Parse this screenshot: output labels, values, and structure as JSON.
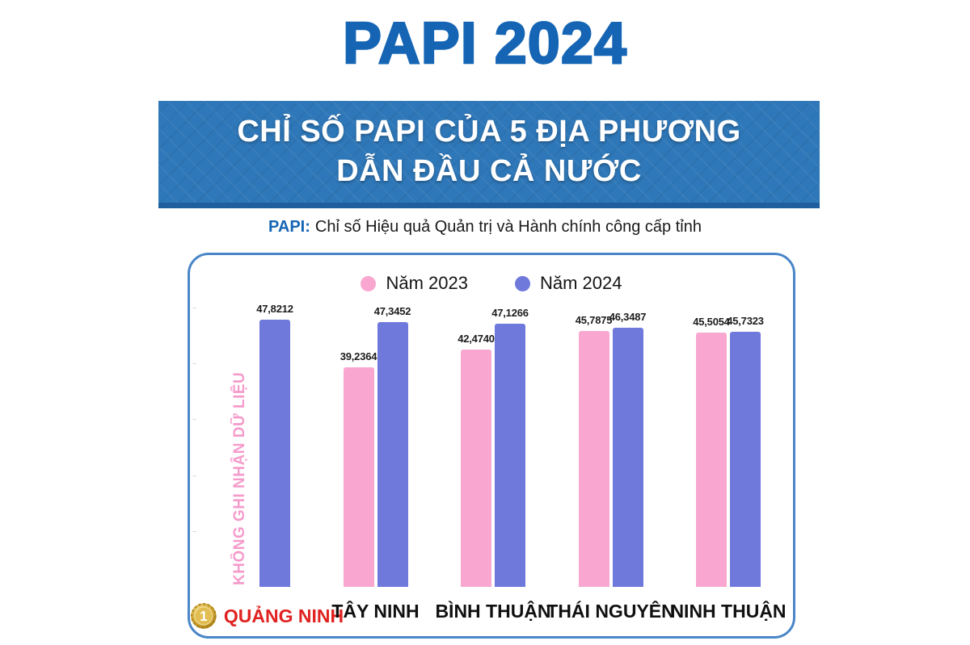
{
  "page_title": "PAPI 2024",
  "banner": {
    "line1": "CHỈ SỐ PAPI CỦA 5 ĐỊA PHƯƠNG",
    "line2": "DẪN ĐẦU CẢ NƯỚC"
  },
  "subtitle": {
    "prefix": "PAPI:",
    "text": "Chỉ số Hiệu quả Quản trị và Hành chính công cấp tỉnh"
  },
  "colors": {
    "title_blue": "#1565B4",
    "banner_blue": "#2E77B8",
    "banner_edge": "#1F5F9E",
    "panel_border": "#4A86C8",
    "pink": "#F9A7D0",
    "purple": "#6E79DB",
    "red": "#E02220",
    "note_pink": "#F59BCB",
    "gold": "#C99B2E"
  },
  "chart_data": {
    "type": "bar",
    "title": "Chỉ số PAPI của 5 địa phương dẫn đầu cả nước",
    "categories": [
      "QUẢNG NINH",
      "TÂY NINH",
      "BÌNH THUẬN",
      "THÁI NGUYÊN",
      "NINH THUẬN"
    ],
    "series": [
      {
        "name": "Năm 2023",
        "color_key": "pink",
        "values": [
          null,
          39.2364,
          42.474,
          45.7875,
          45.5054
        ],
        "value_labels": [
          "",
          "39,2364",
          "42,4740",
          "45,7875",
          "45,5054"
        ]
      },
      {
        "name": "Năm 2024",
        "color_key": "purple",
        "values": [
          47.8212,
          47.3452,
          47.1266,
          46.3487,
          45.7323
        ],
        "value_labels": [
          "47,8212",
          "47,3452",
          "47,1266",
          "46,3487",
          "45,7323"
        ]
      }
    ],
    "missing_data_label": "KHÔNG GHI NHẬN DỮ LIỆU",
    "rank_badge": "1",
    "highlight_category_index": 0,
    "ylim": [
      0,
      50
    ],
    "grid": false,
    "axes_hidden": true,
    "legend_position": "top"
  }
}
